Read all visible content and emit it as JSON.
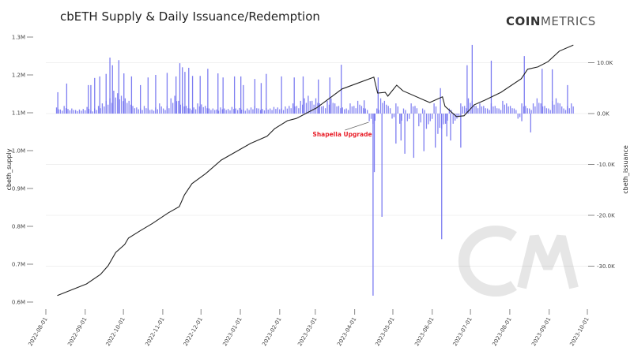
{
  "chart_data": {
    "type": "bar+line",
    "title": "cbETH Supply & Daily Issuance/Redemption",
    "logo": {
      "bold": "COIN",
      "light": "METRICS"
    },
    "watermark": "CM",
    "ylabel_left": "cbeth_supply",
    "ylabel_right": "cbeth_issuance",
    "ylim_left": [
      0.6,
      1.3
    ],
    "ylim_right": [
      -37,
      14
    ],
    "xlim": [
      "2022-08-01",
      "2023-10-01"
    ],
    "grid": true,
    "colors": {
      "line": "#222222",
      "bars": "#6f6ff0",
      "annotation": "#e8202a"
    },
    "x_ticks": [
      "2022-08-01",
      "2022-09-01",
      "2022-10-01",
      "2022-11-01",
      "2022-12-01",
      "2023-01-01",
      "2023-02-01",
      "2023-03-01",
      "2023-04-01",
      "2023-05-01",
      "2023-06-01",
      "2023-07-01",
      "2023-08-01",
      "2023-09-01",
      "2023-10-01"
    ],
    "y_ticks_left": [
      {
        "v": 1.3,
        "label": "1.3M"
      },
      {
        "v": 1.2,
        "label": "1.2M"
      },
      {
        "v": 1.1,
        "label": "1.1M"
      },
      {
        "v": 1.0,
        "label": "1.0M"
      },
      {
        "v": 0.9,
        "label": "0.9M"
      },
      {
        "v": 0.8,
        "label": "0.8M"
      },
      {
        "v": 0.7,
        "label": "0.7M"
      },
      {
        "v": 0.6,
        "label": "0.6M"
      }
    ],
    "y_ticks_right": [
      {
        "v": 10,
        "label": "10.0K"
      },
      {
        "v": 0,
        "label": "0.0K"
      },
      {
        "v": -10,
        "label": "-10.0K"
      },
      {
        "v": -20,
        "label": "-20.0K"
      },
      {
        "v": -30,
        "label": "-30.0K"
      }
    ],
    "annotation": {
      "text": "Shapella Upgrade",
      "date": "2023-04-12"
    },
    "supply": [
      [
        "2022-08-10",
        0.617
      ],
      [
        "2022-09-02",
        0.648
      ],
      [
        "2022-09-13",
        0.673
      ],
      [
        "2022-09-19",
        0.696
      ],
      [
        "2022-09-25",
        0.731
      ],
      [
        "2022-10-02",
        0.752
      ],
      [
        "2022-10-05",
        0.769
      ],
      [
        "2022-10-14",
        0.788
      ],
      [
        "2022-10-24",
        0.808
      ],
      [
        "2022-11-05",
        0.835
      ],
      [
        "2022-11-14",
        0.852
      ],
      [
        "2022-11-18",
        0.883
      ],
      [
        "2022-11-24",
        0.913
      ],
      [
        "2022-12-05",
        0.94
      ],
      [
        "2022-12-17",
        0.975
      ],
      [
        "2022-12-29",
        0.998
      ],
      [
        "2023-01-09",
        1.019
      ],
      [
        "2023-01-22",
        1.038
      ],
      [
        "2023-01-28",
        1.058
      ],
      [
        "2023-02-07",
        1.079
      ],
      [
        "2023-02-14",
        1.085
      ],
      [
        "2023-03-02",
        1.113
      ],
      [
        "2023-03-22",
        1.163
      ],
      [
        "2023-04-16",
        1.194
      ],
      [
        "2023-04-19",
        1.152
      ],
      [
        "2023-04-25",
        1.154
      ],
      [
        "2023-04-27",
        1.144
      ],
      [
        "2023-05-04",
        1.173
      ],
      [
        "2023-05-09",
        1.158
      ],
      [
        "2023-05-26",
        1.133
      ],
      [
        "2023-05-30",
        1.127
      ],
      [
        "2023-06-09",
        1.142
      ],
      [
        "2023-06-11",
        1.117
      ],
      [
        "2023-06-20",
        1.09
      ],
      [
        "2023-06-26",
        1.092
      ],
      [
        "2023-07-04",
        1.121
      ],
      [
        "2023-07-12",
        1.133
      ],
      [
        "2023-07-25",
        1.154
      ],
      [
        "2023-08-10",
        1.19
      ],
      [
        "2023-08-15",
        1.215
      ],
      [
        "2023-08-23",
        1.221
      ],
      [
        "2023-08-31",
        1.235
      ],
      [
        "2023-09-09",
        1.263
      ],
      [
        "2023-09-20",
        1.279
      ]
    ],
    "issuance_baseline": {
      "start": "2022-08-09",
      "step_days": 3,
      "values": [
        1.2,
        0.8,
        1.5,
        0.9,
        1,
        0.7,
        0.8,
        0.9,
        1.3,
        0.6,
        1,
        1.5,
        2,
        2.5,
        3,
        4.5,
        4,
        3.5,
        3,
        2.5,
        1.5,
        1.2,
        1,
        1.5,
        1,
        0.8,
        1.2,
        2,
        1,
        1.5,
        3,
        3.5,
        2.5,
        2,
        1.5,
        1,
        1.2,
        2,
        1.8,
        1.5,
        1,
        1,
        0.8,
        1.2,
        1,
        0.9,
        1.3,
        1,
        1.1,
        0.8,
        1,
        1.2,
        1.5,
        1,
        0.9,
        1.1,
        1,
        1.3,
        1.2,
        1,
        1.4,
        1.5,
        2,
        1.5,
        2.5,
        3,
        3.5,
        2.5,
        3,
        2,
        1.5,
        2.5,
        3,
        2,
        1.5,
        1.2,
        1,
        2,
        1.5,
        2.5,
        1.5,
        1,
        -1.5,
        -2,
        1,
        3,
        2.5,
        1.5,
        -1,
        2,
        -2,
        1,
        -1.5,
        2,
        1.5,
        -2.5,
        1,
        -3,
        -1.5,
        2,
        -4,
        -3,
        -2,
        1,
        -2,
        -1,
        2,
        1.5,
        3,
        2.5,
        1.5,
        2,
        1.5,
        1,
        2,
        1.5,
        1,
        2.5,
        2,
        1.5,
        1,
        -1,
        2,
        1.5,
        1,
        2,
        3,
        2,
        1.5,
        1,
        2.5,
        3,
        2,
        1,
        1.5,
        2
      ]
    },
    "issuance_spikes": [
      [
        "2022-08-10",
        4.2
      ],
      [
        "2022-08-17",
        5.9
      ],
      [
        "2022-09-03",
        5.6
      ],
      [
        "2022-09-05",
        5.6
      ],
      [
        "2022-09-08",
        7.0
      ],
      [
        "2022-09-12",
        7.3
      ],
      [
        "2022-09-17",
        7.8
      ],
      [
        "2022-09-20",
        11.0
      ],
      [
        "2022-09-22",
        9.5
      ],
      [
        "2022-09-27",
        10.5
      ],
      [
        "2022-10-01",
        7.9
      ],
      [
        "2022-10-07",
        7.3
      ],
      [
        "2022-10-14",
        5.6
      ],
      [
        "2022-10-20",
        7.1
      ],
      [
        "2022-10-26",
        7.6
      ],
      [
        "2022-11-04",
        8.0
      ],
      [
        "2022-11-11",
        7.3
      ],
      [
        "2022-11-14",
        9.9
      ],
      [
        "2022-11-16",
        9.1
      ],
      [
        "2022-11-18",
        8.2
      ],
      [
        "2022-11-21",
        9.0
      ],
      [
        "2022-11-24",
        7.4
      ],
      [
        "2022-11-30",
        7.4
      ],
      [
        "2022-12-06",
        8.8
      ],
      [
        "2022-12-14",
        7.9
      ],
      [
        "2022-12-18",
        7.1
      ],
      [
        "2022-12-27",
        7.3
      ],
      [
        "2023-01-01",
        7.3
      ],
      [
        "2023-01-03",
        5.6
      ],
      [
        "2023-01-12",
        6.8
      ],
      [
        "2023-01-17",
        6.0
      ],
      [
        "2023-01-21",
        7.8
      ],
      [
        "2023-02-02",
        7.3
      ],
      [
        "2023-02-12",
        7.1
      ],
      [
        "2023-02-19",
        7.3
      ],
      [
        "2023-03-03",
        6.7
      ],
      [
        "2023-03-12",
        7.1
      ],
      [
        "2023-03-21",
        9.6
      ],
      [
        "2023-04-08",
        2.6
      ],
      [
        "2023-04-19",
        7.1
      ],
      [
        "2023-06-07",
        5.0
      ],
      [
        "2023-06-28",
        9.5
      ],
      [
        "2023-07-02",
        13.5
      ],
      [
        "2023-07-17",
        10.4
      ],
      [
        "2023-08-12",
        11.3
      ],
      [
        "2023-08-26",
        8.8
      ],
      [
        "2023-09-03",
        8.7
      ],
      [
        "2023-09-15",
        5.6
      ],
      [
        "2023-04-15",
        -35.8
      ],
      [
        "2023-04-16",
        -11.5
      ],
      [
        "2023-04-22",
        -20.3
      ],
      [
        "2023-05-03",
        -5.9
      ],
      [
        "2023-05-07",
        -5.3
      ],
      [
        "2023-05-10",
        -7.9
      ],
      [
        "2023-05-17",
        -8.7
      ],
      [
        "2023-05-25",
        -7.4
      ],
      [
        "2023-06-03",
        -6.7
      ],
      [
        "2023-06-08",
        -24.7
      ],
      [
        "2023-06-12",
        -4.5
      ],
      [
        "2023-06-15",
        -5.3
      ],
      [
        "2023-06-23",
        -6.7
      ],
      [
        "2023-08-10",
        -1.5
      ],
      [
        "2023-08-17",
        -3.7
      ]
    ]
  }
}
